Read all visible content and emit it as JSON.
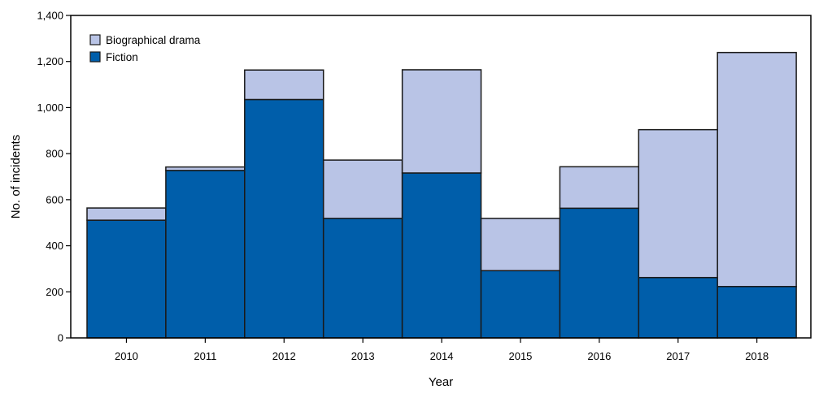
{
  "chart_data": {
    "type": "bar",
    "stacked": true,
    "title": "",
    "xlabel": "Year",
    "ylabel": "No. of incidents",
    "categories": [
      "2010",
      "2011",
      "2012",
      "2013",
      "2014",
      "2015",
      "2016",
      "2017",
      "2018"
    ],
    "series": [
      {
        "name": "Fiction",
        "color": "#005eaa",
        "values": [
          511,
          727,
          1035,
          519,
          716,
          292,
          563,
          262,
          223
        ]
      },
      {
        "name": "Biographical drama",
        "color": "#b9c4e6",
        "values": [
          53,
          15,
          128,
          253,
          448,
          227,
          180,
          642,
          1016
        ]
      }
    ],
    "ylim": [
      0,
      1400
    ],
    "yticks": [
      0,
      200,
      400,
      600,
      800,
      1000,
      1200,
      1400
    ],
    "ytick_labels": [
      "0",
      "200",
      "400",
      "600",
      "800",
      "1,000",
      "1,200",
      "1,400"
    ],
    "legend": {
      "placement": "top-left",
      "entries": [
        "Biographical drama",
        "Fiction"
      ]
    },
    "grid": false
  }
}
